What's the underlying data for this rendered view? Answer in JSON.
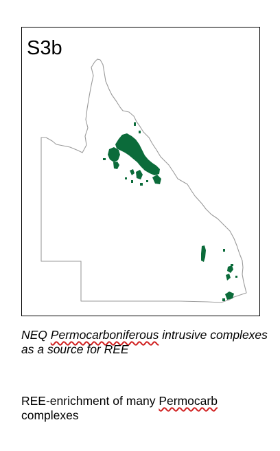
{
  "panel": {
    "label": "S3b"
  },
  "map": {
    "outline_color": "#9a9a9a",
    "feature_color": "#0b6b3a",
    "features": [
      "NEQ Permocarboniferous intrusive complexes"
    ]
  },
  "caption": {
    "part1": "NEQ ",
    "part2": "Permocarboniferous",
    "part3": " intrusive complexes as a source for REE"
  },
  "note": {
    "part1": "REE-enrichment of many ",
    "part2": "Permocarb",
    "part3": " complexes"
  }
}
